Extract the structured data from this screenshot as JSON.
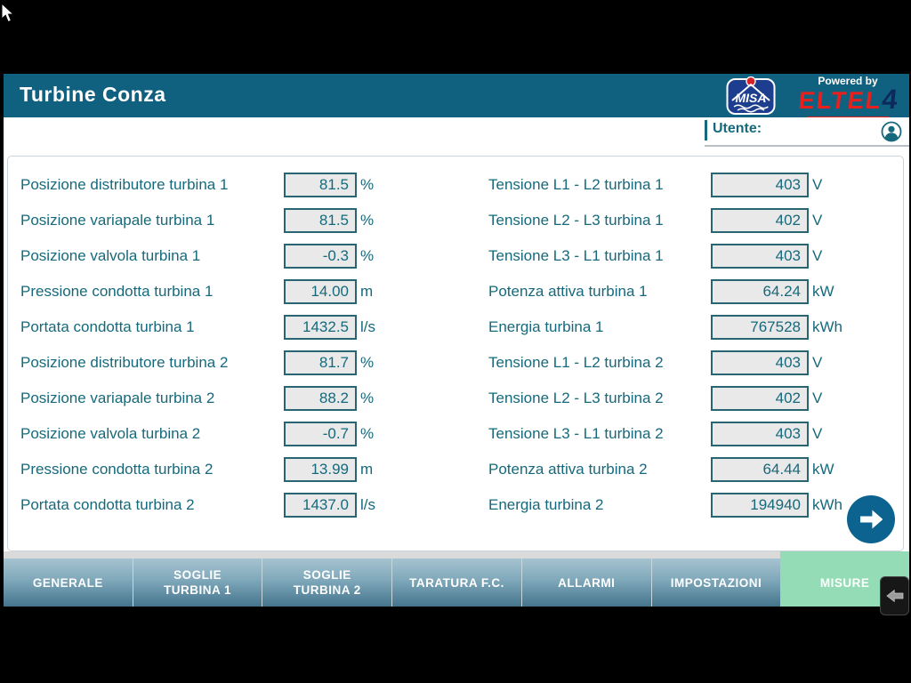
{
  "header": {
    "title": "Turbine Conza",
    "powered_by": "Powered by",
    "brand_name": "ELTEL",
    "brand_number": "4",
    "misa_logo_text": "MISA"
  },
  "user_bar": {
    "label": "Utente:"
  },
  "measurements": {
    "left": [
      {
        "label": "Posizione distributore turbina 1",
        "value": "81.5",
        "unit": "%"
      },
      {
        "label": "Posizione variapale turbina 1",
        "value": "81.5",
        "unit": "%"
      },
      {
        "label": "Posizione valvola turbina 1",
        "value": "-0.3",
        "unit": "%"
      },
      {
        "label": "Pressione condotta turbina 1",
        "value": "14.00",
        "unit": "m"
      },
      {
        "label": "Portata condotta turbina 1",
        "value": "1432.5",
        "unit": "l/s"
      },
      {
        "label": "Posizione distributore turbina 2",
        "value": "81.7",
        "unit": "%"
      },
      {
        "label": "Posizione variapale turbina 2",
        "value": "88.2",
        "unit": "%"
      },
      {
        "label": "Posizione valvola turbina 2",
        "value": "-0.7",
        "unit": "%"
      },
      {
        "label": "Pressione condotta turbina 2",
        "value": "13.99",
        "unit": "m"
      },
      {
        "label": "Portata condotta turbina 2",
        "value": "1437.0",
        "unit": "l/s"
      }
    ],
    "right": [
      {
        "label": "Tensione L1 - L2 turbina 1",
        "value": "403",
        "unit": "V"
      },
      {
        "label": "Tensione L2 - L3 turbina 1",
        "value": "402",
        "unit": "V"
      },
      {
        "label": "Tensione L3 - L1 turbina 1",
        "value": "403",
        "unit": "V"
      },
      {
        "label": "Potenza attiva turbina 1",
        "value": "64.24",
        "unit": "kW"
      },
      {
        "label": "Energia turbina 1",
        "value": "767528",
        "unit": "kWh"
      },
      {
        "label": "Tensione L1 - L2 turbina 2",
        "value": "403",
        "unit": "V"
      },
      {
        "label": "Tensione L2 - L3 turbina 2",
        "value": "402",
        "unit": "V"
      },
      {
        "label": "Tensione L3 - L1 turbina 2",
        "value": "403",
        "unit": "V"
      },
      {
        "label": "Potenza attiva turbina 2",
        "value": "64.44",
        "unit": "kW"
      },
      {
        "label": "Energia turbina 2",
        "value": "194940",
        "unit": "kWh"
      }
    ]
  },
  "tabs": [
    {
      "label": "GENERALE",
      "active": false
    },
    {
      "label": "SOGLIE\nTURBINA 1",
      "active": false
    },
    {
      "label": "SOGLIE\nTURBINA 2",
      "active": false
    },
    {
      "label": "TARATURA F.C.",
      "active": false
    },
    {
      "label": "ALLARMI",
      "active": false
    },
    {
      "label": "IMPOSTAZIONI",
      "active": false
    },
    {
      "label": "MISURE",
      "active": true
    }
  ],
  "colors": {
    "header_teal": "#10617f",
    "text_teal": "#16697c",
    "value_box_fill": "#e9e9e9",
    "value_box_border": "#2a6473",
    "active_tab_green": "#93dcb5",
    "tab_gradient_top": "#a6c3d0",
    "tab_gradient_bottom": "#44748d",
    "brand_red": "#e8201d",
    "brand_navy": "#0c2a5e",
    "next_button_blue": "#0d6390"
  }
}
